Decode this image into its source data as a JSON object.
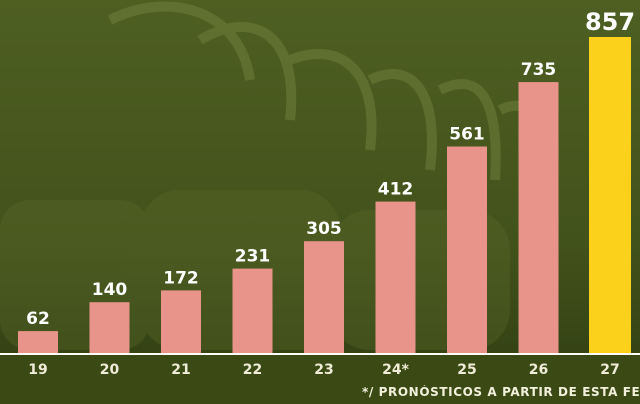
{
  "chart_data": {
    "type": "bar",
    "categories": [
      "19",
      "20",
      "21",
      "22",
      "23",
      "24*",
      "25",
      "26",
      "27"
    ],
    "values": [
      62,
      140,
      172,
      231,
      305,
      412,
      561,
      735,
      857
    ],
    "highlight_index": 8,
    "colors": {
      "bar": "#e8948a",
      "highlight": "#fbd11c",
      "background": "#3a4a18",
      "axis": "#ffffff"
    },
    "ylim": [
      0,
      857
    ],
    "grid": false,
    "footnote": "*/ PRONÓSTICOS A PARTIR DE ESTA FECHA"
  }
}
